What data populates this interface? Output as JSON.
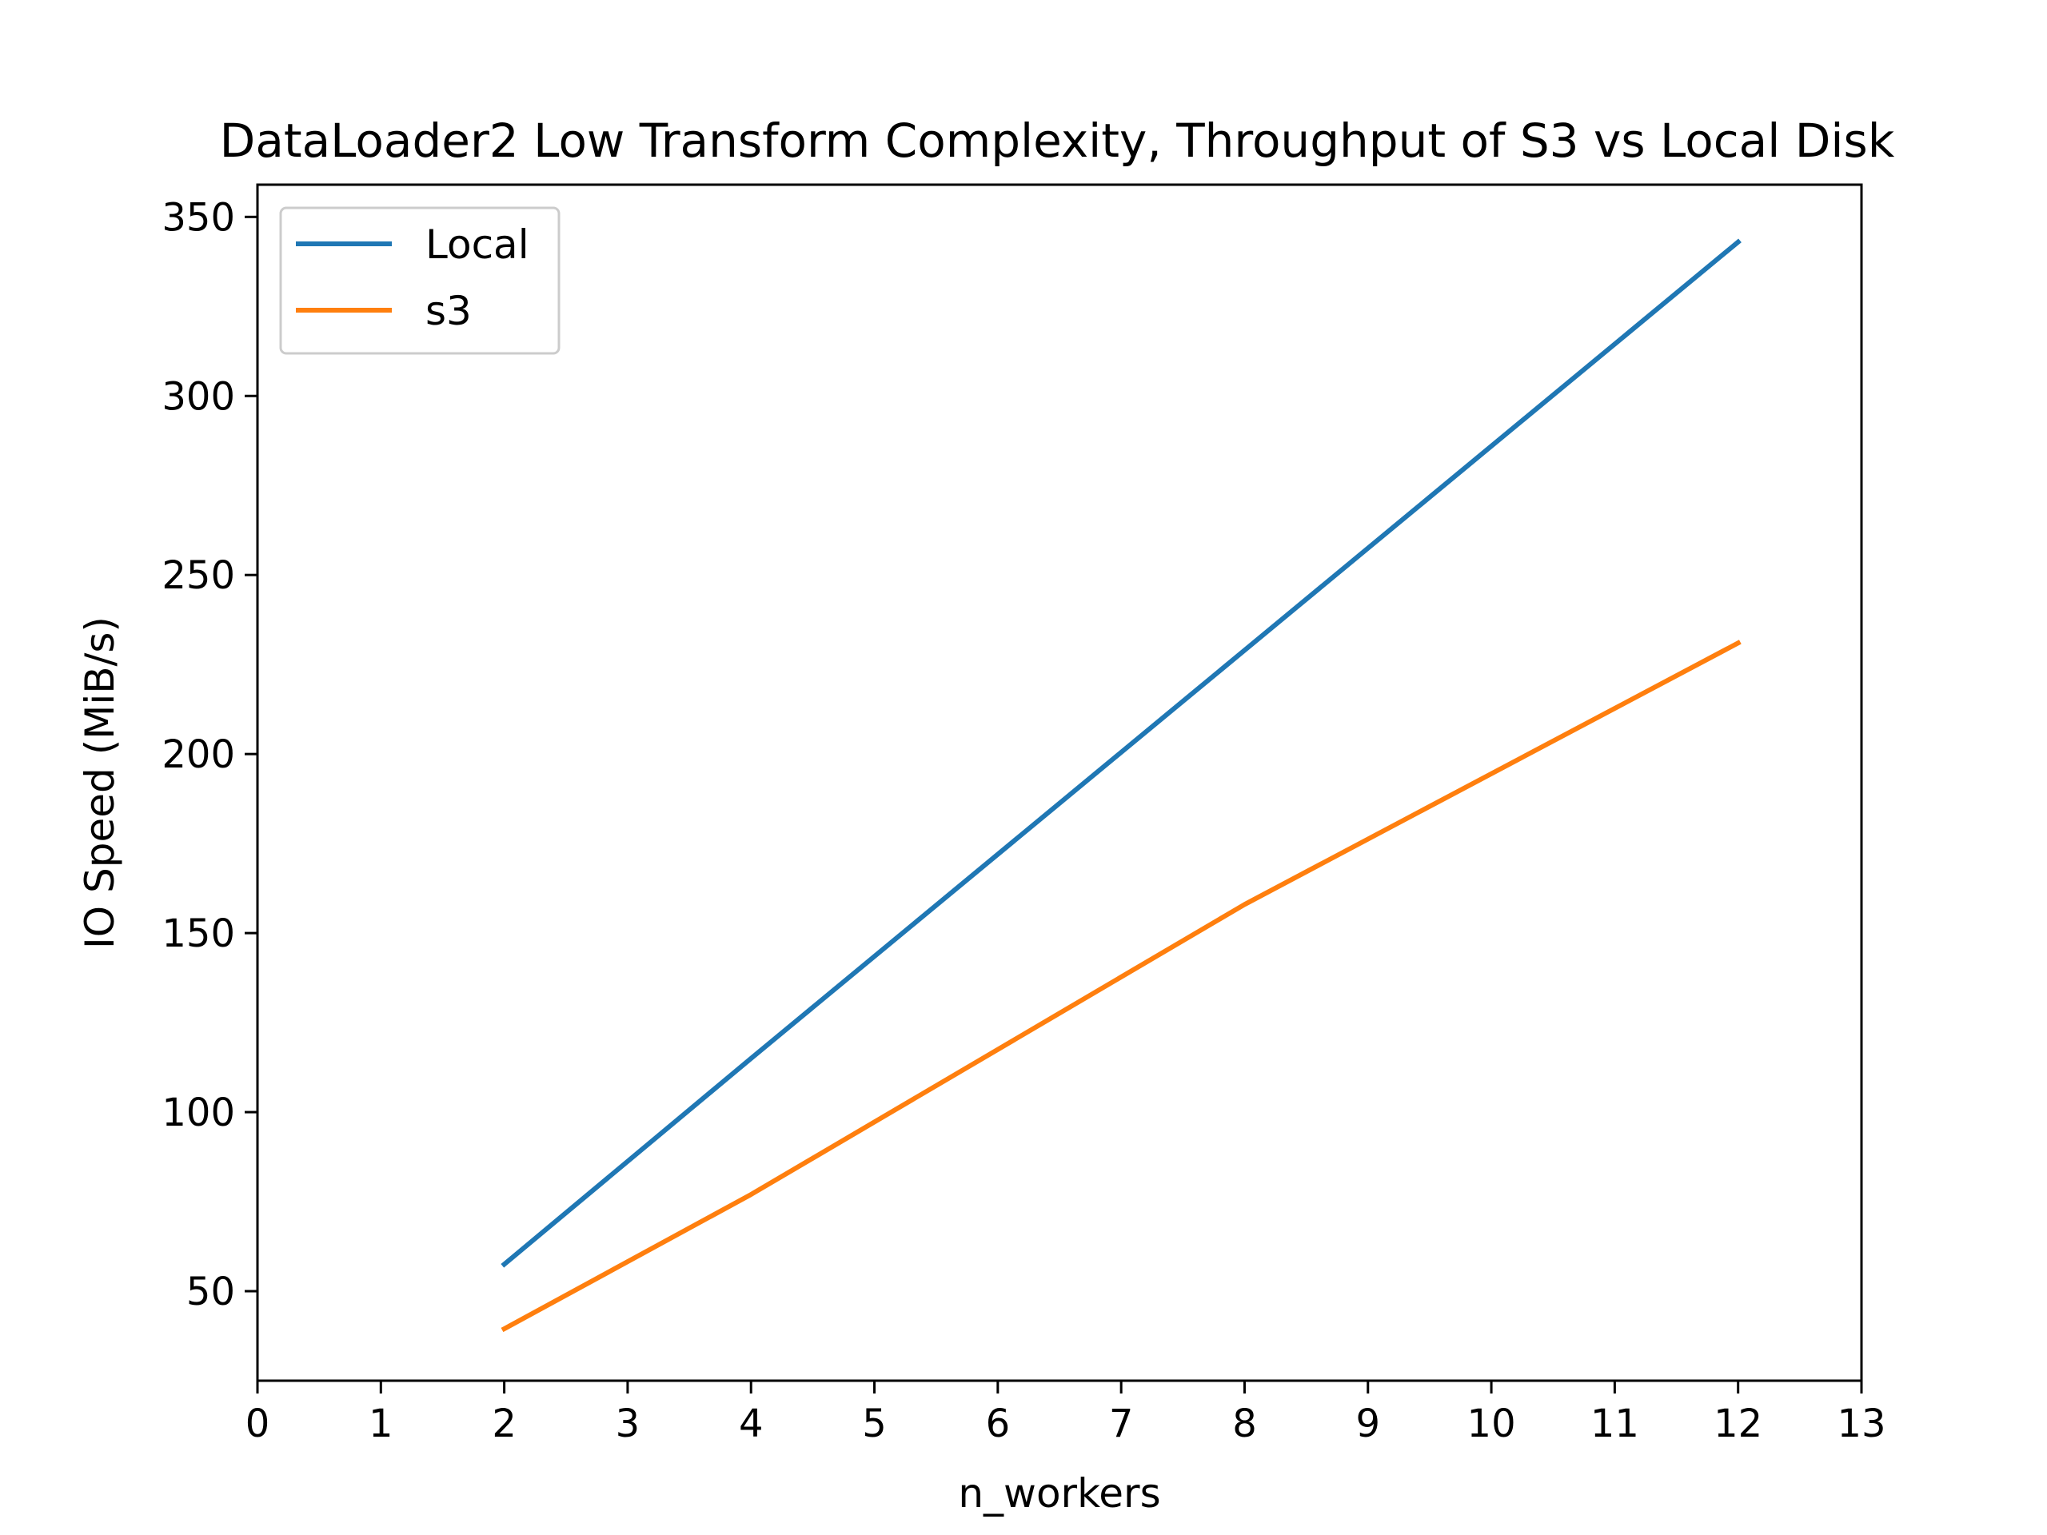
{
  "chart_data": {
    "type": "line",
    "title": "DataLoader2 Low Transform Complexity, Throughput of S3 vs Local Disk",
    "xlabel": "n_workers",
    "ylabel": "IO Speed (MiB/s)",
    "xlim": [
      0,
      13
    ],
    "ylim": [
      25,
      359
    ],
    "xticks": [
      0,
      1,
      2,
      3,
      4,
      5,
      6,
      7,
      8,
      9,
      10,
      11,
      12,
      13
    ],
    "yticks": [
      50,
      100,
      150,
      200,
      250,
      300,
      350
    ],
    "grid": false,
    "legend_position": "upper-left",
    "series": [
      {
        "name": "Local",
        "color": "#1f77b4",
        "x": [
          2,
          4,
          8,
          12
        ],
        "y": [
          57.5,
          115,
          229,
          343
        ]
      },
      {
        "name": "s3",
        "color": "#ff7f0e",
        "x": [
          2,
          4,
          8,
          12
        ],
        "y": [
          39.5,
          77,
          158,
          231
        ]
      }
    ]
  }
}
